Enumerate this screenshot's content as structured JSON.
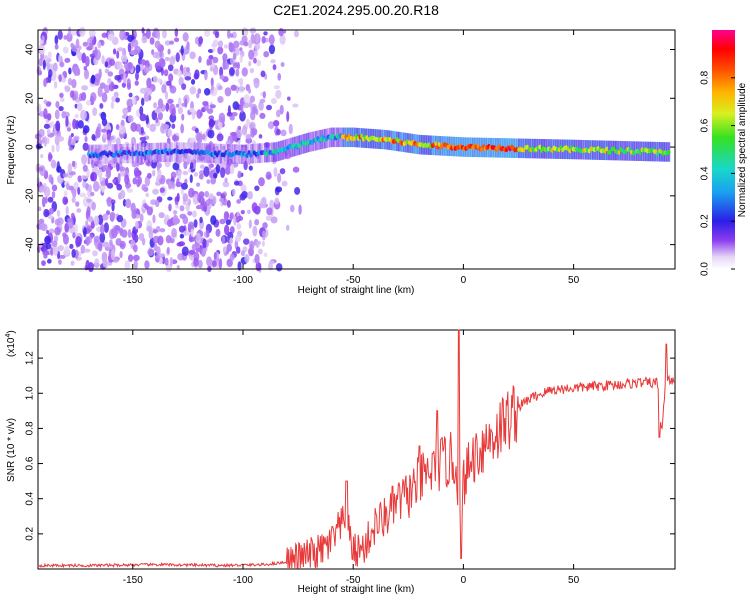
{
  "title": "C2E1.2024.295.00.20.R18",
  "chart_data": [
    {
      "type": "heatmap",
      "xlabel": "Height of straight line (km)",
      "ylabel": "Frequency (Hz)",
      "xlim": [
        -193,
        96
      ],
      "ylim": [
        -50,
        48
      ],
      "xticks": [
        -150,
        -100,
        -50,
        0,
        50
      ],
      "yticks": [
        -40,
        -20,
        0,
        20,
        40
      ],
      "colorbar": {
        "label": "Normalized spectral amplitude",
        "range": [
          0,
          1
        ],
        "ticks": [
          "0.0",
          "0.2",
          "0.4",
          "0.6",
          "0.8"
        ]
      },
      "ridge_frequency_hz": [
        {
          "x": -165,
          "y": -3
        },
        {
          "x": -130,
          "y": -2
        },
        {
          "x": -100,
          "y": -3
        },
        {
          "x": -85,
          "y": -2
        },
        {
          "x": -70,
          "y": 2
        },
        {
          "x": -60,
          "y": 4
        },
        {
          "x": -50,
          "y": 4
        },
        {
          "x": -35,
          "y": 3
        },
        {
          "x": -20,
          "y": 1
        },
        {
          "x": 0,
          "y": 0
        },
        {
          "x": 50,
          "y": -1
        },
        {
          "x": 92,
          "y": -2
        }
      ]
    },
    {
      "type": "line",
      "xlabel": "Height of straight line (km)",
      "ylabel": "SNR (10 * v/v)",
      "y_scale_label": "(x10",
      "y_scale_exponent": "4",
      "xlim": [
        -193,
        96
      ],
      "ylim": [
        0,
        1.36
      ],
      "xticks": [
        -150,
        -100,
        -50,
        0,
        50
      ],
      "yticks": [
        "0.2",
        "0.4",
        "0.6",
        "0.8",
        "1.0",
        "1.2"
      ],
      "color": "#e83a3a",
      "series": [
        {
          "name": "SNR",
          "x": [
            -193,
            -170,
            -140,
            -110,
            -90,
            -80,
            -70,
            -65,
            -60,
            -55,
            -52,
            -50,
            -45,
            -40,
            -35,
            -30,
            -25,
            -20,
            -15,
            -10,
            -5,
            -3,
            -1,
            0,
            5,
            10,
            15,
            20,
            25,
            30,
            40,
            50,
            60,
            70,
            80,
            88,
            90,
            92,
            96
          ],
          "y": [
            0.02,
            0.02,
            0.025,
            0.02,
            0.025,
            0.04,
            0.08,
            0.1,
            0.15,
            0.25,
            0.2,
            0.1,
            0.12,
            0.25,
            0.3,
            0.38,
            0.42,
            0.5,
            0.55,
            0.6,
            0.62,
            0.55,
            0.15,
            0.5,
            0.65,
            0.72,
            0.78,
            0.85,
            0.92,
            0.97,
            1.02,
            1.03,
            1.04,
            1.05,
            1.06,
            1.06,
            0.78,
            1.1,
            1.05
          ],
          "spikes": [
            {
              "x": -53,
              "y": 0.5
            },
            {
              "x": -20,
              "y": 0.7
            },
            {
              "x": -12,
              "y": 0.9
            },
            {
              "x": -2,
              "y": 1.36
            },
            {
              "x": -1,
              "y": 0.06
            },
            {
              "x": 89,
              "y": 0.75
            },
            {
              "x": 92,
              "y": 1.28
            }
          ]
        }
      ]
    }
  ]
}
